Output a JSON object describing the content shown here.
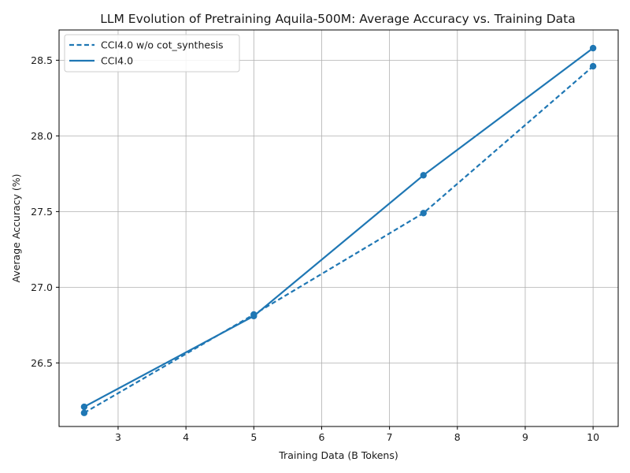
{
  "chart_data": {
    "type": "line",
    "title": "LLM Evolution of Pretraining Aquila-500M: Average Accuracy vs. Training Data",
    "xlabel": "Training Data (B Tokens)",
    "ylabel": "Average Accuracy (%)",
    "xlim": [
      2.13,
      10.37
    ],
    "ylim": [
      26.08,
      28.7
    ],
    "xticks": [
      3,
      4,
      5,
      6,
      7,
      8,
      9,
      10
    ],
    "yticks": [
      26.5,
      27.0,
      27.5,
      28.0,
      28.5
    ],
    "xtick_labels": [
      "3",
      "4",
      "5",
      "6",
      "7",
      "8",
      "9",
      "10"
    ],
    "ytick_labels": [
      "26.5",
      "27.0",
      "27.5",
      "28.0",
      "28.5"
    ],
    "grid": true,
    "legend_position": "top-left",
    "x": [
      2.5,
      5,
      7.5,
      10
    ],
    "series": [
      {
        "name": "CCI4.0 w/o cot_synthesis",
        "values": [
          26.17,
          26.82,
          27.49,
          28.46
        ],
        "style": "dashed",
        "color": "#1f77b4"
      },
      {
        "name": "CCI4.0",
        "values": [
          26.21,
          26.81,
          27.74,
          28.58
        ],
        "style": "solid",
        "color": "#1f77b4"
      }
    ]
  }
}
